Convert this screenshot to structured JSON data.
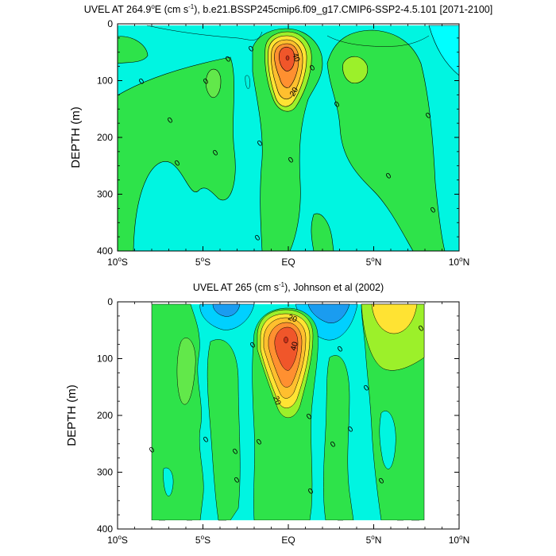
{
  "colors": {
    "bg": "#ffffff",
    "cyan": "#00f5e1",
    "lightcyan": "#00ffff",
    "green_light": "#62e84a",
    "green": "#2ee34a",
    "green_yellow": "#9cf02a",
    "yellow": "#ffe333",
    "orange_light": "#ffbf2e",
    "orange": "#ff9030",
    "red_orange": "#f0562a",
    "blue_light": "#00d0ff",
    "blue": "#1a9cf0"
  },
  "chart_data": [
    {
      "type": "contour",
      "title_pre": "UVEL AT 264.9",
      "title_deg": "o",
      "title_mid": "E (cm s",
      "title_exp": "-1",
      "title_post": "), b.e21.BSSP245cmip6.f09_g17.CMIP6-SSP2-4.5.101 [2071-2100]",
      "ylabel": "DEPTH (m)",
      "xticks": [
        {
          "v": -10,
          "main": "10",
          "deg": "o",
          "suf": "S"
        },
        {
          "v": -5,
          "main": "5",
          "deg": "o",
          "suf": "S"
        },
        {
          "v": 0,
          "main": "EQ",
          "deg": "",
          "suf": ""
        },
        {
          "v": 5,
          "main": "5",
          "deg": "o",
          "suf": "N"
        },
        {
          "v": 10,
          "main": "10",
          "deg": "o",
          "suf": "N"
        }
      ],
      "yticks": [
        "0",
        "100",
        "200",
        "300",
        "400"
      ],
      "xlim": [
        -10,
        10
      ],
      "ylim": [
        0,
        400
      ],
      "core_max_cm_s": 45,
      "contour_labels": [
        "40",
        "20"
      ],
      "zero_labels": [
        "0",
        "0",
        "0",
        "0",
        "0",
        "0",
        "0",
        "0",
        "0",
        "0",
        "0",
        "0",
        "0",
        "0",
        "0"
      ]
    },
    {
      "type": "contour",
      "title_pre": "UVEL AT 265 (cm s",
      "title_exp": "-1",
      "title_post": "), Johnson et al (2002)",
      "ylabel": "DEPTH (m)",
      "xticks": [
        {
          "v": -10,
          "main": "10",
          "deg": "o",
          "suf": "S"
        },
        {
          "v": -5,
          "main": "5",
          "deg": "o",
          "suf": "S"
        },
        {
          "v": 0,
          "main": "EQ",
          "deg": "",
          "suf": ""
        },
        {
          "v": 5,
          "main": "5",
          "deg": "o",
          "suf": "N"
        },
        {
          "v": 10,
          "main": "10",
          "deg": "o",
          "suf": "N"
        }
      ],
      "yticks": [
        "0",
        "100",
        "200",
        "300",
        "400"
      ],
      "xlim": [
        -10,
        10
      ],
      "ylim": [
        0,
        400
      ],
      "data_xlim": [
        -8,
        8
      ],
      "core_max_cm_s": 45,
      "contour_labels": [
        "20",
        "40",
        "20"
      ],
      "zero_labels": [
        "0",
        "0",
        "0",
        "0",
        "0",
        "0",
        "0",
        "0",
        "0",
        "0",
        "0",
        "0",
        "0",
        "0",
        "0",
        "0",
        "0",
        "0",
        "0",
        "0",
        "0"
      ]
    }
  ]
}
